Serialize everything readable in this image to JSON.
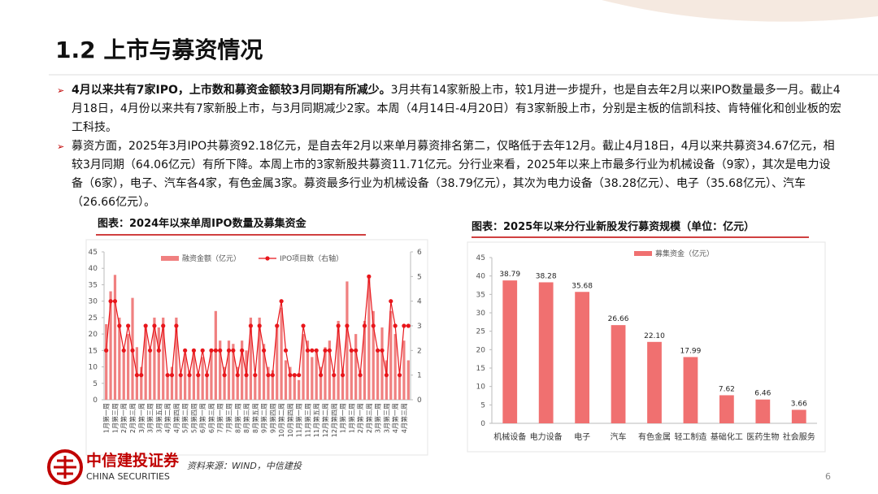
{
  "header": {
    "title": "1.2 上市与募资情况"
  },
  "bullets": [
    {
      "bold": "4月以来共有7家IPO，上市数和募资金额较3月同期有所减少。",
      "text": "3月共有14家新股上市，较1月进一步提升，也是自去年2月以来IPO数量最多一月。截止4月18日，4月份以来共有7家新股上市，与3月同期减少2家。本周（4月14日-4月20日）有3家新股上市，分别是主板的信凯科技、肯特催化和创业板的宏工科技。"
    },
    {
      "text": "募资方面，2025年3月IPO共募资92.18亿元，是自去年2月以来单月募资排名第二，仅略低于去年12月。截止4月18日，4月以来共募资34.67亿元，相较3月同期（64.06亿元）有所下降。本周上市的3家新股共募资11.71亿元。分行业来看，2025年以来上市最多行业为机械设备（9家），其次是电力设备（6家），电子、汽车各4家，有色金属3家。募资最多行业为机械设备（38.79亿元），其次为电力设备（38.28亿元）、电子（35.68亿元）、汽车（26.66亿元）。"
    }
  ],
  "chart_data": [
    {
      "type": "bar",
      "title": "图表：2024年以来单周IPO数量及募集资金",
      "categories": [
        "1月第一周",
        null,
        "1月第三周",
        null,
        "2月第一周",
        null,
        "2月第三周",
        null,
        "3月第一周",
        null,
        "3月第三周",
        null,
        "3月第五周",
        null,
        "4月第二周",
        null,
        "4月第四周",
        null,
        "5月第二周",
        null,
        "5月第四周",
        null,
        "6月第一周",
        null,
        "6月第三周",
        null,
        "7月第一周",
        null,
        "7月第三周",
        null,
        "8月第一周",
        null,
        "8月第三周",
        null,
        "8月第五周",
        null,
        "9月第二周",
        null,
        "9月第四周",
        null,
        "10月第二周",
        null,
        "10月第四周",
        null,
        "11月第一周",
        null,
        "11月第三周",
        null,
        "11月第五周",
        null,
        "12月第二周",
        null,
        "12月第四周",
        null,
        "1月第一周",
        null,
        "1月第三周",
        null,
        "2月第一周",
        null,
        "2月第三周",
        null,
        "3月第一周",
        null,
        "3月第三周",
        null,
        "4月第一周",
        null,
        "4月第三周",
        null
      ],
      "series": [
        {
          "name": "融资金额（亿元）",
          "type": "bar",
          "color": "#f08080",
          "values": [
            23,
            33,
            38,
            25,
            15,
            20,
            31,
            16,
            10,
            22,
            15,
            25,
            22,
            25,
            8,
            10,
            25,
            7,
            14,
            9,
            15,
            8,
            13,
            8,
            15,
            27,
            18,
            10,
            18,
            17,
            10,
            18,
            15,
            25,
            8,
            25,
            17,
            10,
            9,
            23,
            28,
            12,
            10,
            8,
            6,
            20,
            18,
            13,
            15,
            10,
            16,
            18,
            8,
            24,
            9,
            36,
            15,
            20,
            9,
            24,
            38,
            27,
            15,
            22,
            12,
            27,
            20,
            7,
            18,
            12
          ]
        },
        {
          "name": "IPO项目数（右轴）",
          "type": "line",
          "axis": "y2",
          "color": "#e8161b",
          "values": [
            2,
            4,
            4,
            3,
            2,
            3,
            2,
            1,
            1,
            3,
            2,
            3,
            2,
            3,
            1,
            1,
            3,
            1,
            2,
            1,
            2,
            1,
            2,
            1,
            2,
            2,
            2,
            1,
            2,
            2,
            1,
            2,
            1,
            3,
            1,
            3,
            2,
            1,
            1,
            3,
            4,
            2,
            1,
            1,
            1,
            3,
            2,
            2,
            2,
            1,
            2,
            2,
            1,
            3,
            1,
            3,
            2,
            2,
            1,
            3,
            5,
            3,
            2,
            2,
            1,
            4,
            3,
            1,
            3,
            3
          ]
        }
      ],
      "ylim": [
        0,
        45
      ],
      "yticks": [
        0,
        5,
        10,
        15,
        20,
        25,
        30,
        35,
        40,
        45
      ],
      "y2lim": [
        0,
        6
      ],
      "y2ticks": [
        0,
        1,
        2,
        3,
        4,
        5,
        6
      ],
      "legend": "top"
    },
    {
      "type": "bar",
      "title": "图表：2025年以来分行业新股发行募资规模（单位：亿元）",
      "categories": [
        "机械设备",
        "电力设备",
        "电子",
        "汽车",
        "有色金属",
        "轻工制造",
        "基础化工",
        "医药生物",
        "社会服务"
      ],
      "series": [
        {
          "name": "募集资金（亿元）",
          "type": "bar",
          "color": "#f07070",
          "values": [
            38.79,
            38.28,
            35.68,
            26.66,
            22.1,
            17.99,
            7.62,
            6.46,
            3.66
          ],
          "value_labels": [
            "38.79",
            "38.28",
            "35.68",
            "26.66",
            "22.10",
            "17.99",
            "7.62",
            "6.46",
            "3.66"
          ]
        }
      ],
      "ylim": [
        0,
        45
      ],
      "yticks": [
        0,
        5,
        10,
        15,
        20,
        25,
        30,
        35,
        40,
        45
      ],
      "legend": "top"
    }
  ],
  "source": "资料来源：WIND，中信建投",
  "logo": {
    "name": "中信建投证券",
    "english": "CHINA SECURITIES"
  },
  "page_number": "6"
}
